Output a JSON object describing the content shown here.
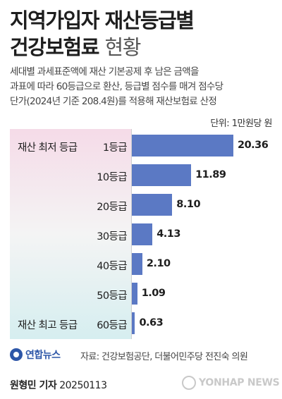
{
  "header": {
    "title_line1": "지역가입자 재산등급별",
    "title_line2_bold": "건강보험료",
    "title_line2_light": "현황"
  },
  "description": [
    "세대별 과세표준액에 재산 기본공제 후 남은 금액을",
    "과표에 따라 60등급으로 환산, 등급별 점수를 매겨 점수당",
    "단가(2024년 기준 208.4원)를 적용해 재산보험료 산정"
  ],
  "unit": "단위: 1만원당 원",
  "chart_data": {
    "type": "bar",
    "orientation": "horizontal",
    "categories": [
      "1등급",
      "10등급",
      "20등급",
      "30등급",
      "40등급",
      "50등급",
      "60등급"
    ],
    "values": [
      20.36,
      11.89,
      8.1,
      4.13,
      2.1,
      1.09,
      0.63
    ],
    "value_labels": [
      "20.36",
      "11.89",
      "8.10",
      "4.13",
      "2.10",
      "1.09",
      "0.63"
    ],
    "annotations": {
      "first": "재산 최저 등급",
      "last": "재산 최고 등급"
    },
    "xlim": [
      0,
      20.36
    ],
    "bar_color": "#5b79c4",
    "grid": false,
    "legend": "none"
  },
  "footer": {
    "logo_text": "연합뉴스",
    "source": "자료: 건강보험공단, 더불어민주당 전진숙 의원",
    "byline_name": "원형민 기자",
    "byline_date": "20250113",
    "watermark": "YONHAP NEWS"
  }
}
